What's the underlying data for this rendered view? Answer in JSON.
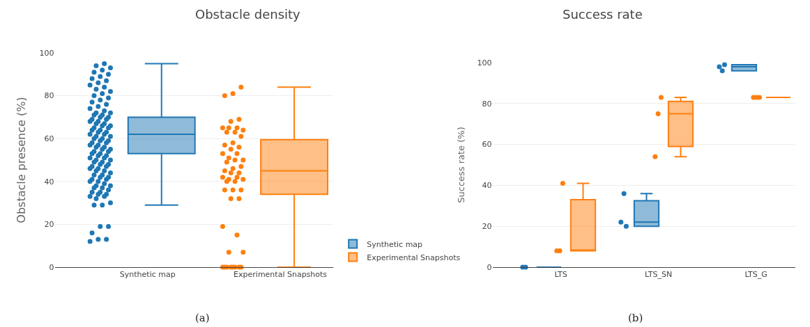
{
  "chart_data": [
    {
      "type": "box",
      "title": "Obstacle density",
      "ylabel": "Obstacle presence (%)",
      "categories": [
        "Synthetic map",
        "Experimental Snapshots"
      ],
      "ylim": [
        0,
        100
      ],
      "yticks": [
        0,
        20,
        40,
        60,
        80,
        100
      ],
      "grid": "y",
      "legend": "bottom right",
      "annotations": [
        "(a)"
      ],
      "series": [
        {
          "name": "Synthetic map",
          "color": "#1f77b4",
          "boxes": [
            {
              "low": 29,
              "q1": 53,
              "median": 62,
              "q3": 70,
              "high": 95
            },
            null
          ]
        },
        {
          "name": "Experimental Snapshots",
          "color": "#ff7f0e",
          "boxes": [
            null,
            {
              "low": 0,
              "q1": 34,
              "median": 45,
              "q3": 59.5,
              "high": 84
            }
          ]
        },
        {
          "type": "scatter",
          "color": "#1f77b4",
          "x": [
            "Synthetic map",
            "Synthetic map",
            "Synthetic map",
            "Synthetic map",
            "Synthetic map",
            "Synthetic map",
            "Synthetic map",
            "Synthetic map",
            "Synthetic map",
            "Synthetic map",
            "Synthetic map",
            "Synthetic map",
            "Synthetic map",
            "Synthetic map",
            "Synthetic map",
            "Synthetic map",
            "Synthetic map",
            "Synthetic map",
            "Synthetic map",
            "Synthetic map",
            "Synthetic map",
            "Synthetic map",
            "Synthetic map",
            "Synthetic map",
            "Synthetic map",
            "Synthetic map",
            "Synthetic map",
            "Synthetic map",
            "Synthetic map",
            "Synthetic map",
            "Synthetic map",
            "Synthetic map",
            "Synthetic map",
            "Synthetic map",
            "Synthetic map",
            "Synthetic map",
            "Synthetic map",
            "Synthetic map",
            "Synthetic map",
            "Synthetic map",
            "Synthetic map",
            "Synthetic map",
            "Synthetic map",
            "Synthetic map",
            "Synthetic map",
            "Synthetic map",
            "Synthetic map",
            "Synthetic map",
            "Synthetic map",
            "Synthetic map",
            "Synthetic map",
            "Synthetic map",
            "Synthetic map",
            "Synthetic map",
            "Synthetic map",
            "Synthetic map",
            "Synthetic map",
            "Synthetic map",
            "Synthetic map",
            "Synthetic map",
            "Synthetic map",
            "Synthetic map",
            "Synthetic map",
            "Synthetic map",
            "Synthetic map",
            "Synthetic map",
            "Synthetic map",
            "Synthetic map",
            "Synthetic map",
            "Synthetic map",
            "Synthetic map",
            "Synthetic map",
            "Synthetic map",
            "Synthetic map",
            "Synthetic map",
            "Synthetic map",
            "Synthetic map",
            "Synthetic map",
            "Synthetic map",
            "Synthetic map",
            "Synthetic map",
            "Synthetic map",
            "Synthetic map",
            "Synthetic map",
            "Synthetic map",
            "Synthetic map",
            "Synthetic map",
            "Synthetic map",
            "Synthetic map",
            "Synthetic map",
            "Synthetic map",
            "Synthetic map",
            "Synthetic map",
            "Synthetic map",
            "Synthetic map",
            "Synthetic map",
            "Synthetic map",
            "Synthetic map",
            "Synthetic map",
            "Synthetic map",
            "Synthetic map",
            "Synthetic map",
            "Synthetic map",
            "Synthetic map",
            "Synthetic map",
            "Synthetic map",
            "Synthetic map",
            "Synthetic map",
            "Synthetic map",
            "Synthetic map"
          ],
          "values": [
            12,
            13,
            13,
            16,
            19,
            19,
            29,
            29,
            30,
            32,
            33,
            33,
            34,
            34,
            35,
            35,
            36,
            37,
            37,
            38,
            38,
            39,
            40,
            40,
            41,
            41,
            42,
            42,
            43,
            43,
            44,
            45,
            45,
            46,
            46,
            47,
            47,
            48,
            48,
            49,
            49,
            50,
            50,
            51,
            51,
            52,
            52,
            53,
            53,
            54,
            54,
            55,
            55,
            56,
            56,
            57,
            57,
            58,
            58,
            59,
            59,
            60,
            60,
            61,
            61,
            62,
            62,
            63,
            63,
            64,
            64,
            65,
            65,
            66,
            66,
            67,
            67,
            68,
            68,
            69,
            69,
            70,
            70,
            71,
            71,
            72,
            72,
            73,
            74,
            75,
            76,
            77,
            78,
            79,
            80,
            81,
            82,
            83,
            84,
            85,
            86,
            87,
            88,
            89,
            90,
            91,
            92,
            93,
            94,
            95
          ]
        },
        {
          "type": "scatter",
          "color": "#ff7f0e",
          "x": [
            "Experimental Snapshots",
            "Experimental Snapshots",
            "Experimental Snapshots",
            "Experimental Snapshots",
            "Experimental Snapshots",
            "Experimental Snapshots",
            "Experimental Snapshots",
            "Experimental Snapshots",
            "Experimental Snapshots",
            "Experimental Snapshots",
            "Experimental Snapshots",
            "Experimental Snapshots",
            "Experimental Snapshots",
            "Experimental Snapshots",
            "Experimental Snapshots",
            "Experimental Snapshots",
            "Experimental Snapshots",
            "Experimental Snapshots",
            "Experimental Snapshots",
            "Experimental Snapshots",
            "Experimental Snapshots",
            "Experimental Snapshots",
            "Experimental Snapshots",
            "Experimental Snapshots",
            "Experimental Snapshots",
            "Experimental Snapshots",
            "Experimental Snapshots",
            "Experimental Snapshots",
            "Experimental Snapshots",
            "Experimental Snapshots",
            "Experimental Snapshots",
            "Experimental Snapshots",
            "Experimental Snapshots",
            "Experimental Snapshots",
            "Experimental Snapshots",
            "Experimental Snapshots",
            "Experimental Snapshots",
            "Experimental Snapshots",
            "Experimental Snapshots",
            "Experimental Snapshots",
            "Experimental Snapshots",
            "Experimental Snapshots",
            "Experimental Snapshots",
            "Experimental Snapshots",
            "Experimental Snapshots",
            "Experimental Snapshots",
            "Experimental Snapshots",
            "Experimental Snapshots",
            "Experimental Snapshots",
            "Experimental Snapshots"
          ],
          "values": [
            0,
            0,
            0,
            0,
            0,
            0,
            0,
            0,
            7,
            7,
            15,
            19,
            32,
            32,
            36,
            36,
            36,
            40,
            40,
            41,
            41,
            42,
            42,
            44,
            44,
            45,
            46,
            47,
            49,
            50,
            50,
            51,
            53,
            53,
            55,
            56,
            57,
            58,
            61,
            63,
            63,
            64,
            65,
            65,
            65,
            68,
            69,
            80,
            81,
            84
          ]
        }
      ]
    },
    {
      "type": "box",
      "title": "Success rate",
      "ylabel": "Success rate (%)",
      "categories": [
        "LTS",
        "LTS_SN",
        "LTS_G"
      ],
      "ylim": [
        0,
        100
      ],
      "yticks": [
        0,
        20,
        40,
        60,
        80,
        100
      ],
      "grid": "y",
      "annotations": [
        "(b)"
      ],
      "series": [
        {
          "color": "#1f77b4",
          "boxes": [
            {
              "low": 0,
              "q1": 0,
              "median": 0,
              "q3": 0,
              "high": 0
            },
            {
              "low": 20,
              "q1": 20,
              "median": 22,
              "q3": 32.5,
              "high": 36
            },
            {
              "low": 96,
              "q1": 96,
              "median": 98,
              "q3": 99,
              "high": 99
            }
          ]
        },
        {
          "color": "#ff7f0e",
          "boxes": [
            {
              "low": 8,
              "q1": 8,
              "median": 8,
              "q3": 33,
              "high": 41
            },
            {
              "low": 54,
              "q1": 59,
              "median": 75,
              "q3": 81,
              "high": 83
            },
            {
              "low": 83,
              "q1": 83,
              "median": 83,
              "q3": 83,
              "high": 83
            }
          ]
        },
        {
          "type": "scatter",
          "color": "#1f77b4",
          "x": [
            "LTS",
            "LTS",
            "LTS_SN",
            "LTS_SN",
            "LTS_SN",
            "LTS_G",
            "LTS_G",
            "LTS_G"
          ],
          "values": [
            0,
            0,
            20,
            22,
            36,
            99,
            98,
            96
          ]
        },
        {
          "type": "scatter",
          "color": "#ff7f0e",
          "x": [
            "LTS",
            "LTS",
            "LTS",
            "LTS_SN",
            "LTS_SN",
            "LTS_SN",
            "LTS_G",
            "LTS_G",
            "LTS_G"
          ],
          "values": [
            8,
            8,
            41,
            54,
            75,
            83,
            83,
            83,
            83
          ]
        }
      ]
    }
  ]
}
